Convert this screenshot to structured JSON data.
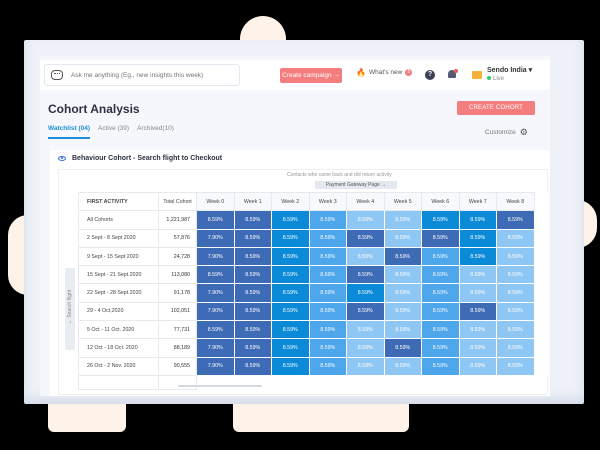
{
  "header": {
    "search_placeholder": "Ask me anything (Eg., new insights this week)",
    "create_campaign_label": "Create campaign →",
    "whats_new_label": "What's new",
    "whats_new_count": "5",
    "help_icon": "?",
    "account_name": "Sendo India ▾",
    "account_status": "Live"
  },
  "page": {
    "title": "Cohort Analysis",
    "create_cohort_label": "CREATE COHORT",
    "customize_label": "Customize",
    "tabs": [
      {
        "label": "Watchlist (04)",
        "active": true
      },
      {
        "label": "Active (39)",
        "active": false
      },
      {
        "label": "Archived(10)",
        "active": false
      }
    ]
  },
  "cohort": {
    "title": "Behaviour Cohort - Search flight to Checkout",
    "contacts_caption": "Contacts who came back and did return activity",
    "gateway_label": "Payment Gateway Page →",
    "side_tab_label": "← Search flight",
    "columns": [
      "FIRST ACTIVITY",
      "Total Cohort",
      "Week 0",
      "Week 1",
      "Week 2",
      "Week 3",
      "Week 4",
      "Week 5",
      "Week 6",
      "Week 7",
      "Week 8"
    ],
    "rows": [
      {
        "activity": "All Cohorts",
        "total": "1,221,987",
        "cells": [
          "8.59%",
          "8.59%",
          "8.59%",
          "8.59%",
          "8.59%",
          "8.59%",
          "8.59%",
          "8.59%",
          "8.59%"
        ],
        "shades": [
          "d",
          "d",
          "b",
          "m",
          "l",
          "l",
          "b",
          "b",
          "d"
        ]
      },
      {
        "activity": "2 Sept - 8 Sept 2020",
        "total": "57,876",
        "cells": [
          "7.90%",
          "8.59%",
          "8.59%",
          "8.59%",
          "8.59%",
          "8.59%",
          "8.59%",
          "8.59%",
          "8.59%"
        ],
        "shades": [
          "d",
          "d",
          "b",
          "m",
          "d",
          "l",
          "d",
          "b",
          "l"
        ]
      },
      {
        "activity": "9 Sept - 15 Sept 2020",
        "total": "24,728",
        "cells": [
          "7.90%",
          "8.59%",
          "8.59%",
          "8.59%",
          "8.59%",
          "8.59%",
          "8.59%",
          "8.59%",
          "8.59%"
        ],
        "shades": [
          "d",
          "d",
          "b",
          "m",
          "l",
          "d",
          "m",
          "b",
          "l"
        ]
      },
      {
        "activity": "15 Sept - 21 Sept.2020",
        "total": "113,080",
        "cells": [
          "8.59%",
          "8.59%",
          "8.59%",
          "8.59%",
          "8.59%",
          "8.59%",
          "8.59%",
          "8.59%",
          "8.59%"
        ],
        "shades": [
          "d",
          "d",
          "b",
          "m",
          "d",
          "l",
          "m",
          "l",
          "l"
        ]
      },
      {
        "activity": "22 Sept - 28 Sept.2020",
        "total": "91,178",
        "cells": [
          "7.90%",
          "8.59%",
          "8.59%",
          "8.59%",
          "8.59%",
          "8.59%",
          "8.59%",
          "8.59%",
          "8.59%"
        ],
        "shades": [
          "d",
          "d",
          "b",
          "m",
          "b",
          "l",
          "m",
          "l",
          "l"
        ]
      },
      {
        "activity": "29 - 4 Oct,2020",
        "total": "102,051",
        "cells": [
          "7.90%",
          "8.59%",
          "8.59%",
          "8.59%",
          "8.59%",
          "8.59%",
          "8.59%",
          "8.59%",
          "8.59%"
        ],
        "shades": [
          "d",
          "d",
          "b",
          "m",
          "d",
          "l",
          "m",
          "d",
          "l"
        ]
      },
      {
        "activity": "5 Oct - 11 Oct. 2020",
        "total": "77,731",
        "cells": [
          "8.59%",
          "8.59%",
          "8.59%",
          "8.59%",
          "8.59%",
          "8.59%",
          "8.59%",
          "8.59%",
          "8.59%"
        ],
        "shades": [
          "d",
          "d",
          "b",
          "m",
          "l",
          "l",
          "m",
          "l",
          "l"
        ]
      },
      {
        "activity": "12 Oct - 18 Oct. 2020",
        "total": "88,189",
        "cells": [
          "7.90%",
          "8.59%",
          "8.59%",
          "8.59%",
          "8.59%",
          "8.59%",
          "8.59%",
          "8.59%",
          "8.59%"
        ],
        "shades": [
          "d",
          "d",
          "b",
          "m",
          "l",
          "d",
          "m",
          "l",
          "l"
        ]
      },
      {
        "activity": "26 Oct - 2 Nov. 2020",
        "total": "90,555",
        "cells": [
          "7.90%",
          "8.59%",
          "8.59%",
          "8.59%",
          "8.59%",
          "8.59%",
          "8.59%",
          "8.59%",
          "8.59%"
        ],
        "shades": [
          "d",
          "d",
          "b",
          "m",
          "l",
          "l",
          "m",
          "l",
          "l"
        ]
      }
    ]
  },
  "colors": {
    "accent": "#1a8fd6",
    "cta": "#f47e7e",
    "heat_dark": "#3e6bb5",
    "heat_bright": "#0b8ad7",
    "heat_medium": "#4ea6eb",
    "heat_light": "#8fc7f4"
  }
}
